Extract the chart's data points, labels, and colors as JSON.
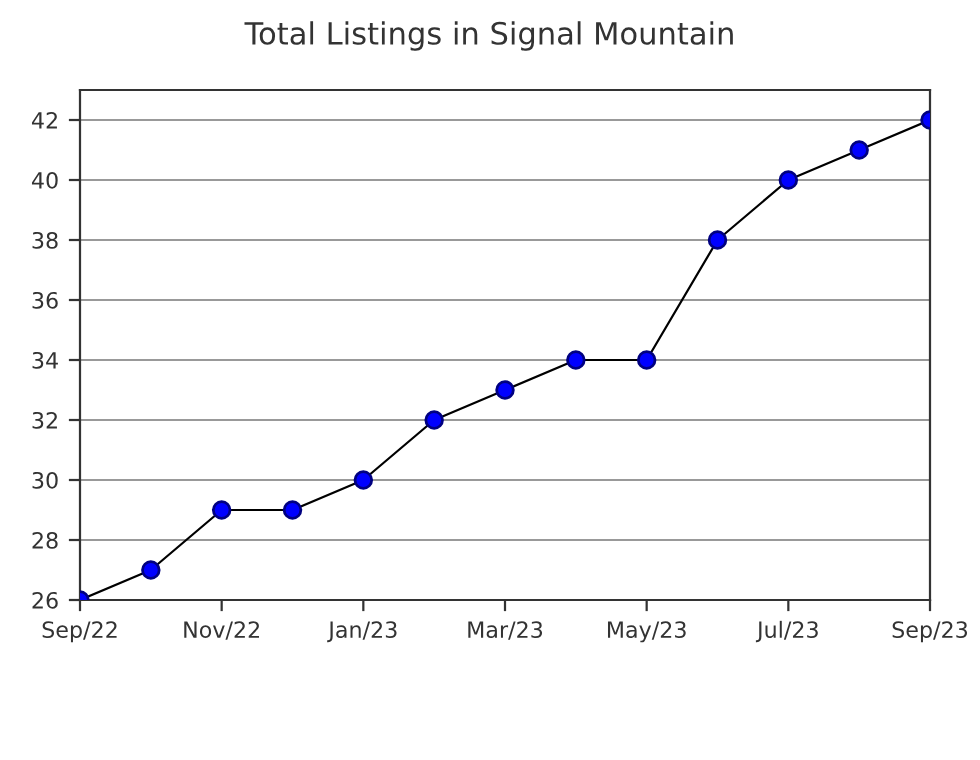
{
  "chart_data": {
    "type": "line",
    "title": "Total Listings in Signal Mountain",
    "categories": [
      "Sep/22",
      null,
      "Nov/22",
      null,
      "Jan/23",
      null,
      "Mar/23",
      null,
      "May/23",
      null,
      "Jul/23",
      null,
      "Sep/23"
    ],
    "series": [
      {
        "color": "#0000ff",
        "values": [
          26,
          27,
          29,
          29,
          30,
          32,
          33,
          34,
          34,
          38,
          40,
          41,
          42
        ]
      }
    ],
    "ylim": [
      26,
      43
    ],
    "yticks": [
      26,
      28,
      30,
      32,
      34,
      36,
      38,
      40,
      42
    ],
    "grid": "y",
    "marker": "circle",
    "line_style": "solid"
  }
}
